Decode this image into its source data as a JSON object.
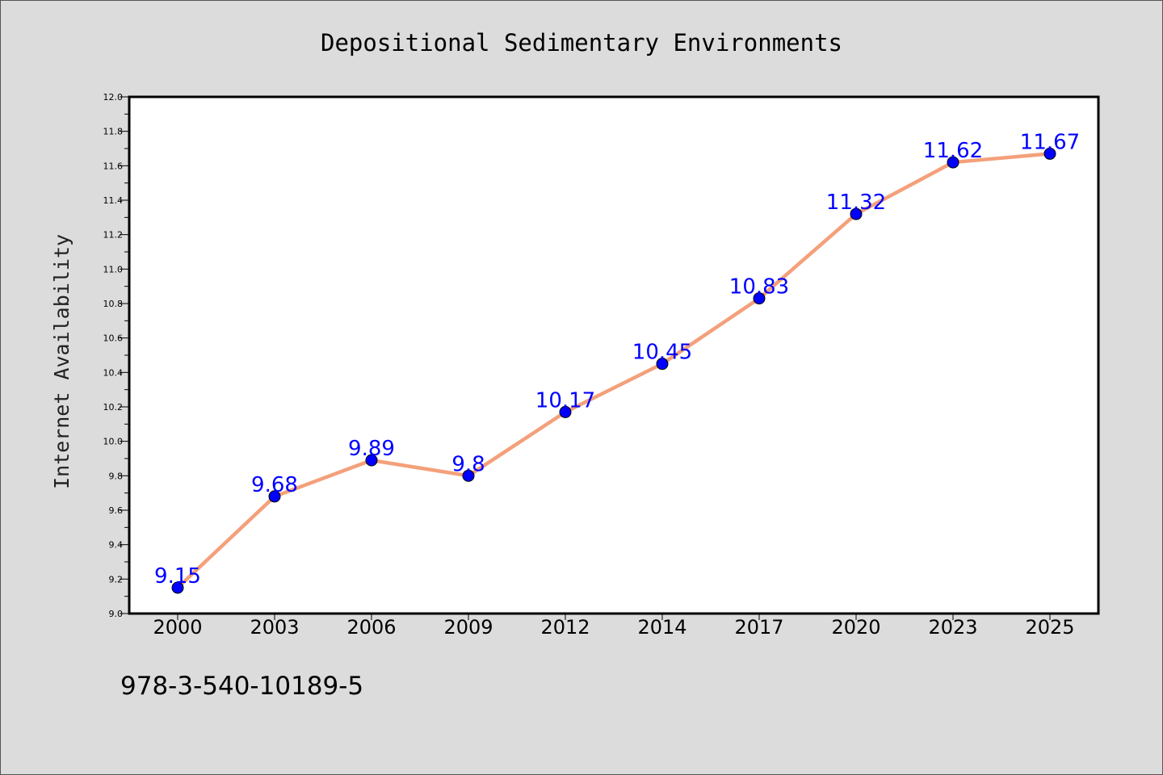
{
  "chart_data": {
    "type": "line",
    "title": "Depositional Sedimentary Environments",
    "xlabel": "",
    "ylabel": "Internet Availability",
    "categories": [
      "2000",
      "2003",
      "2006",
      "2009",
      "2012",
      "2014",
      "2017",
      "2020",
      "2023",
      "2025"
    ],
    "series": [
      {
        "values": [
          9.15,
          9.68,
          9.89,
          9.8,
          10.17,
          10.45,
          10.83,
          11.32,
          11.62,
          11.67
        ]
      }
    ],
    "data_labels": [
      "9.15",
      "9.68",
      "9.89",
      "9.8",
      "10.17",
      "10.45",
      "10.83",
      "11.32",
      "11.62",
      "11.67"
    ],
    "ylim": [
      9.0,
      12.0
    ],
    "yticks": [
      "9.0",
      "9.2",
      "9.4",
      "9.6",
      "9.8",
      "10.0",
      "10.2",
      "10.4",
      "10.6",
      "10.8",
      "11.0",
      "11.2",
      "11.4",
      "11.6",
      "11.8",
      "12.0"
    ],
    "grid": false,
    "legend": "none",
    "colors": {
      "line": "#f4a07a",
      "marker": "#0000ff",
      "label": "#0000ff",
      "background": "#dcdcdc",
      "plot_background": "#ffffff"
    }
  },
  "footer": {
    "code": "978-3-540-10189-5"
  }
}
